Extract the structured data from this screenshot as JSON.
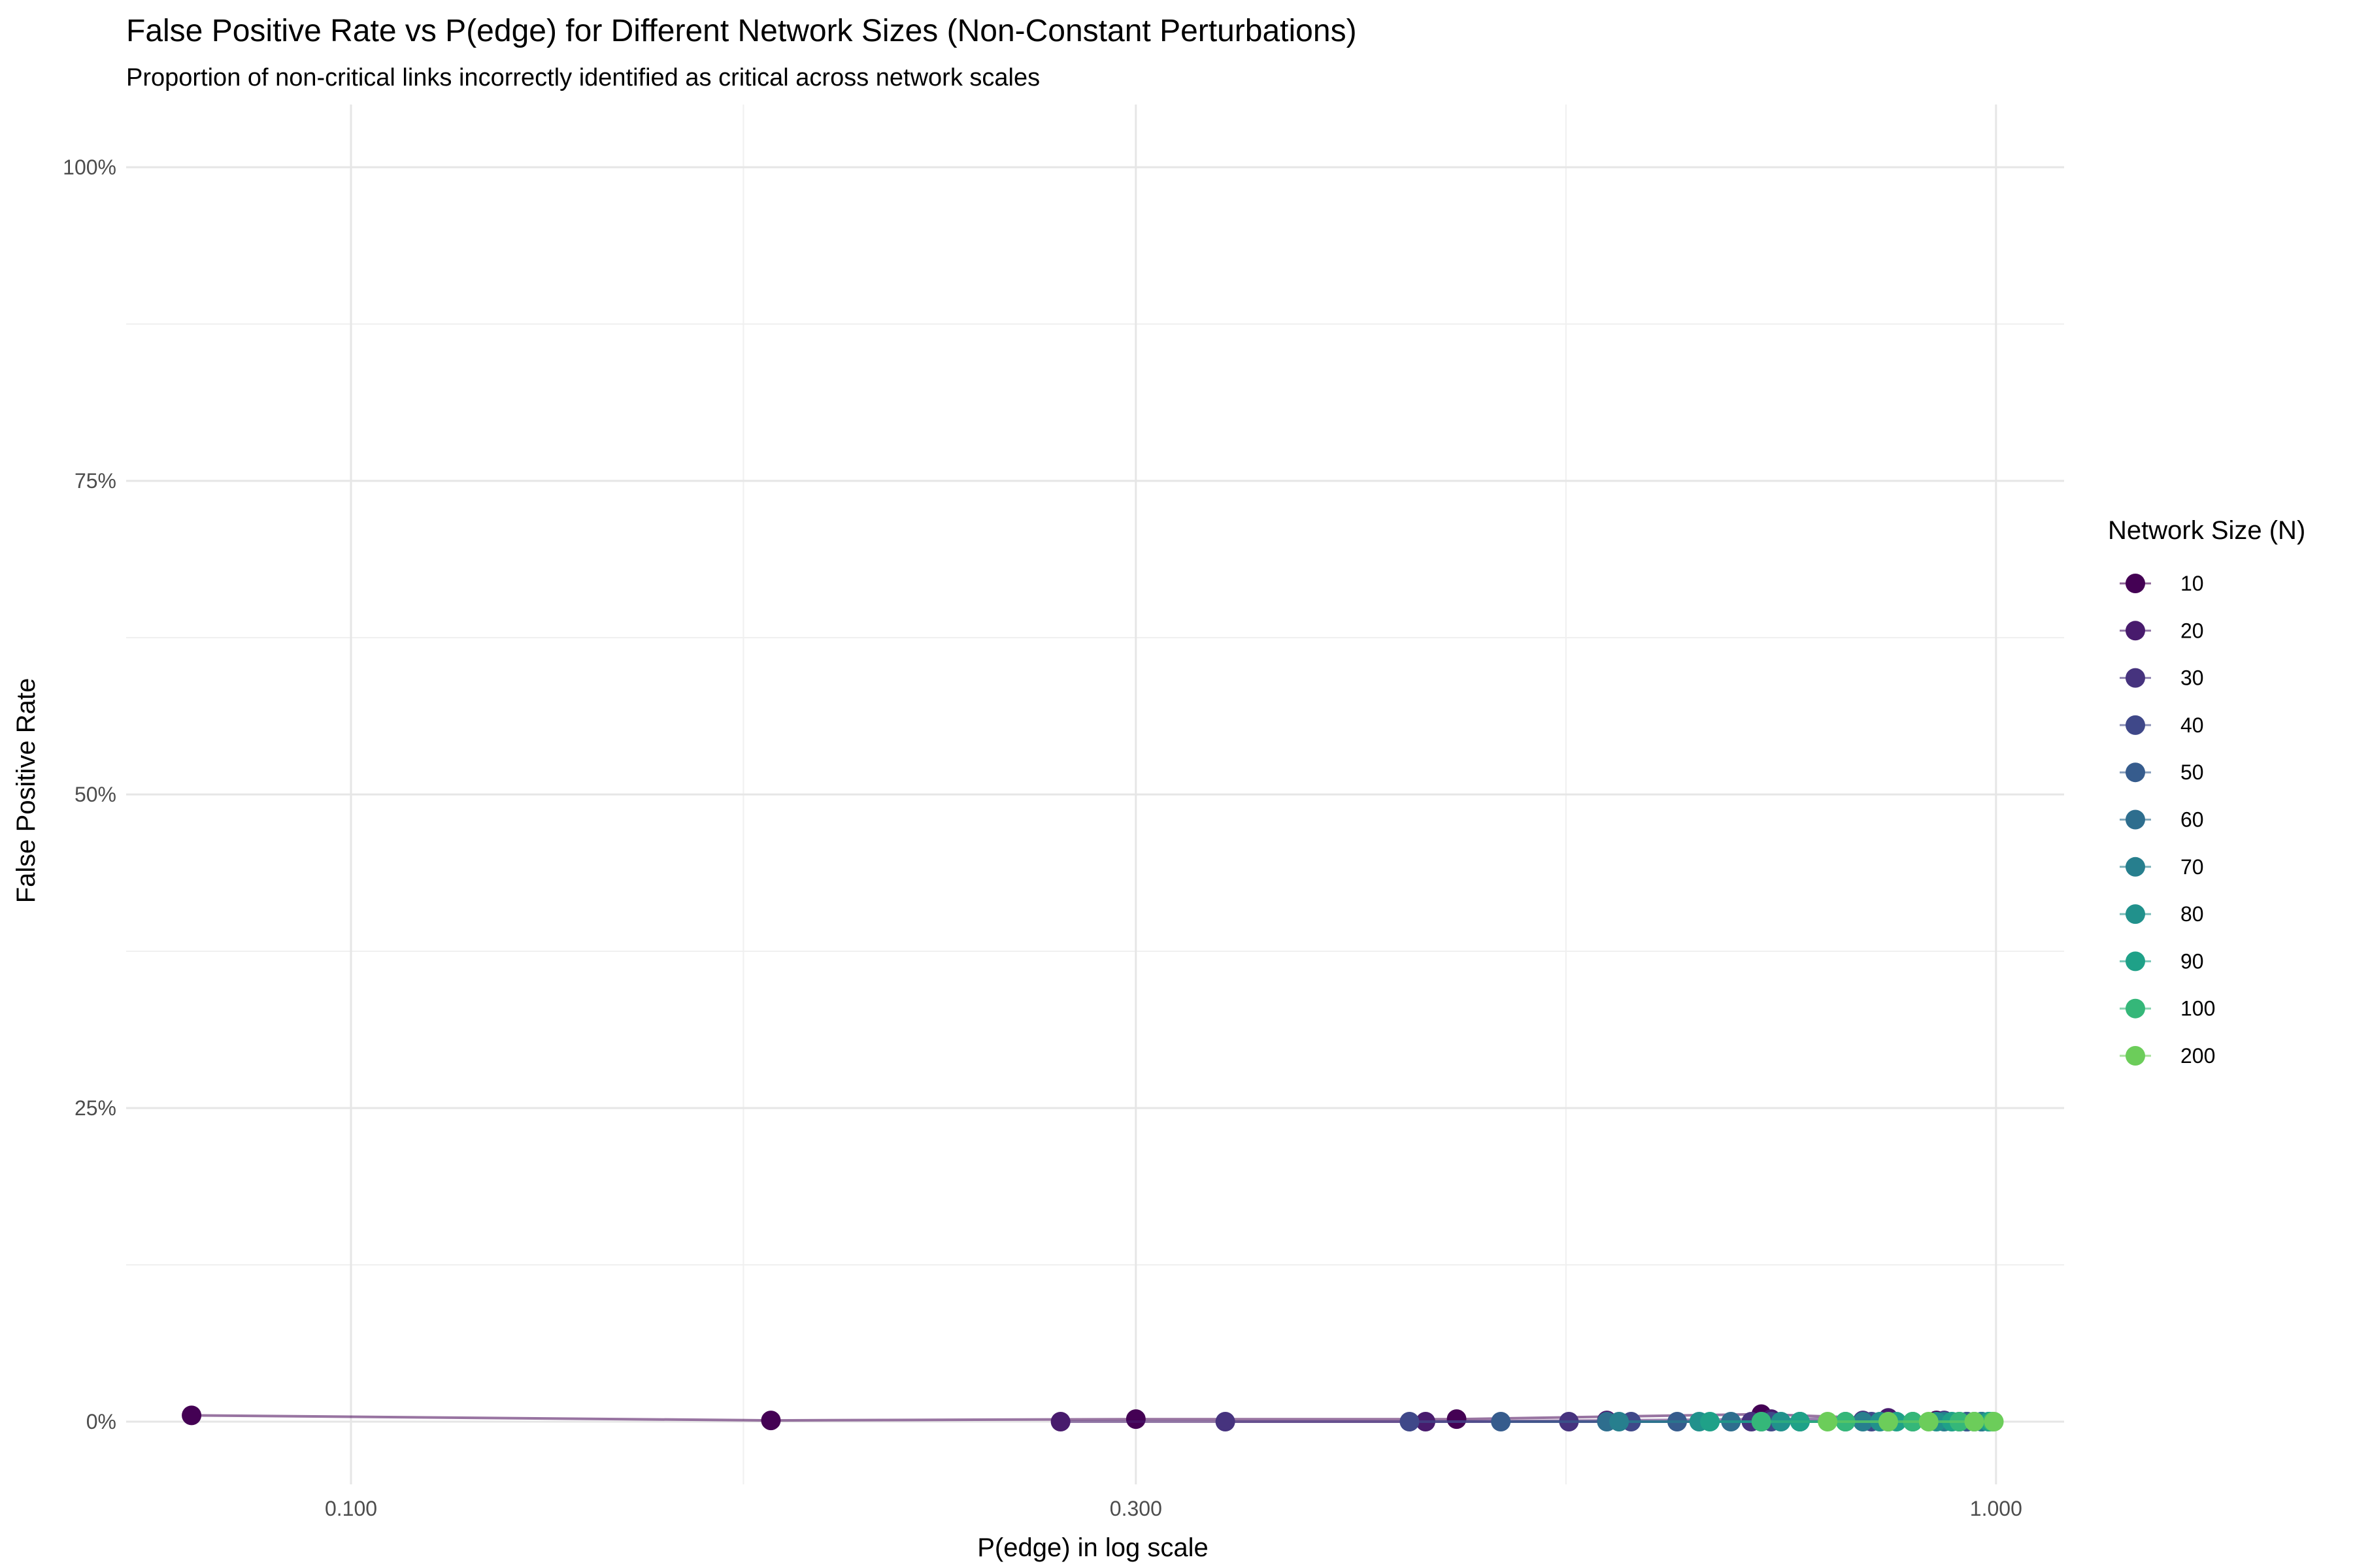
{
  "chart_data": {
    "type": "line",
    "title": "False Positive Rate vs P(edge) for Different Network Sizes (Non-Constant Perturbations)",
    "subtitle": "Proportion of non-critical links incorrectly identified as critical across network scales",
    "xlabel": "P(edge) in log scale",
    "ylabel": "False Positive Rate",
    "x_scale": "log10",
    "xlim": [
      0.073,
      1.1
    ],
    "ylim": [
      -0.05,
      1.05
    ],
    "x_ticks": [
      0.1,
      0.3,
      1.0
    ],
    "x_tick_labels": [
      "0.100",
      "0.300",
      "1.000"
    ],
    "y_ticks": [
      0,
      0.25,
      0.5,
      0.75,
      1.0
    ],
    "y_tick_labels": [
      "0%",
      "25%",
      "50%",
      "75%",
      "100%"
    ],
    "grid": true,
    "legend": {
      "title": "Network Size (N)",
      "position": "right"
    },
    "series": [
      {
        "name": "10",
        "color": "#440154",
        "points": [
          [
            0.08,
            0.005
          ],
          [
            0.18,
            0.001
          ],
          [
            0.3,
            0.002
          ],
          [
            0.47,
            0.002
          ],
          [
            0.72,
            0.006
          ],
          [
            0.92,
            0.001
          ]
        ]
      },
      {
        "name": "20",
        "color": "#481B6D",
        "points": [
          [
            0.27,
            0.0
          ],
          [
            0.45,
            0.0
          ],
          [
            0.58,
            0.001
          ],
          [
            0.73,
            0.002
          ],
          [
            0.86,
            0.003
          ],
          [
            0.96,
            0.0
          ]
        ]
      },
      {
        "name": "30",
        "color": "#46337E",
        "points": [
          [
            0.34,
            0.0
          ],
          [
            0.55,
            0.0
          ],
          [
            0.71,
            0.0
          ],
          [
            0.83,
            0.001
          ],
          [
            0.93,
            0.001
          ],
          [
            0.98,
            0.0
          ]
        ]
      },
      {
        "name": "40",
        "color": "#3F4889",
        "points": [
          [
            0.44,
            0.0
          ],
          [
            0.6,
            0.0
          ],
          [
            0.73,
            0.0
          ],
          [
            0.84,
            0.0
          ],
          [
            0.95,
            0.0
          ]
        ]
      },
      {
        "name": "50",
        "color": "#365C8D",
        "points": [
          [
            0.5,
            0.0
          ],
          [
            0.64,
            0.0
          ],
          [
            0.76,
            0.0
          ],
          [
            0.86,
            0.0
          ],
          [
            0.96,
            0.0
          ]
        ]
      },
      {
        "name": "60",
        "color": "#2E6E8E",
        "points": [
          [
            0.58,
            0.0
          ],
          [
            0.69,
            0.0
          ],
          [
            0.81,
            0.0
          ],
          [
            0.89,
            0.0
          ],
          [
            0.97,
            0.0
          ]
        ]
      },
      {
        "name": "70",
        "color": "#277F8E",
        "points": [
          [
            0.59,
            0.0
          ],
          [
            0.72,
            0.0
          ],
          [
            0.83,
            0.0
          ],
          [
            0.93,
            0.0
          ],
          [
            0.98,
            0.0
          ]
        ]
      },
      {
        "name": "80",
        "color": "#21918C",
        "points": [
          [
            0.66,
            0.0
          ],
          [
            0.74,
            0.0
          ],
          [
            0.85,
            0.0
          ],
          [
            0.92,
            0.0
          ],
          [
            0.99,
            0.0
          ]
        ]
      },
      {
        "name": "90",
        "color": "#1FA188",
        "points": [
          [
            0.67,
            0.0
          ],
          [
            0.76,
            0.0
          ],
          [
            0.87,
            0.0
          ],
          [
            0.94,
            0.0
          ],
          [
            0.99,
            0.0
          ]
        ]
      },
      {
        "name": "100",
        "color": "#35B779",
        "points": [
          [
            0.72,
            0.0
          ],
          [
            0.81,
            0.0
          ],
          [
            0.89,
            0.0
          ],
          [
            0.95,
            0.0
          ],
          [
            0.995,
            0.0
          ]
        ]
      },
      {
        "name": "200",
        "color": "#6CCD5A",
        "points": [
          [
            0.79,
            0.0
          ],
          [
            0.86,
            0.0
          ],
          [
            0.91,
            0.0
          ],
          [
            0.97,
            0.0
          ],
          [
            0.997,
            0.0
          ]
        ]
      }
    ]
  }
}
